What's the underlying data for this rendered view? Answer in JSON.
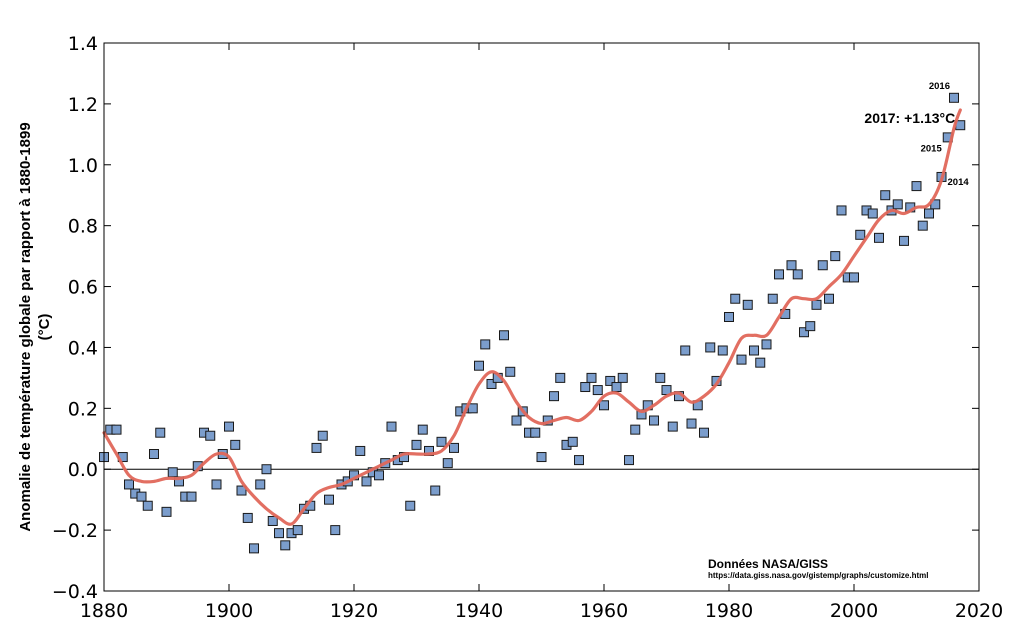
{
  "chart_data": {
    "type": "scatter",
    "title": "",
    "xlabel": "",
    "ylabel_lines": [
      "Anomalie de température globale par rapport à 1880-1899",
      "(°C)"
    ],
    "xlim": [
      1880,
      2020
    ],
    "ylim": [
      -0.4,
      1.4
    ],
    "xticks": [
      1880,
      1900,
      1920,
      1940,
      1960,
      1980,
      2000,
      2020
    ],
    "yticks": [
      -0.4,
      -0.2,
      0.0,
      0.2,
      0.4,
      0.6,
      0.8,
      1.0,
      1.2,
      1.4
    ],
    "grid": false,
    "zero_line": true,
    "marker_color": "#7b9dcc",
    "line_color": "#e0675a",
    "series": [
      {
        "x": [
          1880,
          1881,
          1882,
          1883,
          1884,
          1885,
          1886,
          1887,
          1888,
          1889,
          1890,
          1891,
          1892,
          1893,
          1894,
          1895,
          1896,
          1897,
          1898,
          1899,
          1900,
          1901,
          1902,
          1903,
          1904,
          1905,
          1906,
          1907,
          1908,
          1909,
          1910,
          1911,
          1912,
          1913,
          1914,
          1915,
          1916,
          1917,
          1918,
          1919,
          1920,
          1921,
          1922,
          1923,
          1924,
          1925,
          1926,
          1927,
          1928,
          1929,
          1930,
          1931,
          1932,
          1933,
          1934,
          1935,
          1936,
          1937,
          1938,
          1939,
          1940,
          1941,
          1942,
          1943,
          1944,
          1945,
          1946,
          1947,
          1948,
          1949,
          1950,
          1951,
          1952,
          1953,
          1954,
          1955,
          1956,
          1957,
          1958,
          1959,
          1960,
          1961,
          1962,
          1963,
          1964,
          1965,
          1966,
          1967,
          1968,
          1969,
          1970,
          1971,
          1972,
          1973,
          1974,
          1975,
          1976,
          1977,
          1978,
          1979,
          1980,
          1981,
          1982,
          1983,
          1984,
          1985,
          1986,
          1987,
          1988,
          1989,
          1990,
          1991,
          1992,
          1993,
          1994,
          1995,
          1996,
          1997,
          1998,
          1999,
          2000,
          2001,
          2002,
          2003,
          2004,
          2005,
          2006,
          2007,
          2008,
          2009,
          2010,
          2011,
          2012,
          2013,
          2014,
          2015,
          2016,
          2017
        ],
        "y": [
          0.04,
          0.13,
          0.13,
          0.04,
          -0.05,
          -0.08,
          -0.09,
          -0.12,
          0.05,
          0.12,
          -0.14,
          -0.01,
          -0.04,
          -0.09,
          -0.09,
          0.01,
          0.12,
          0.11,
          -0.05,
          0.05,
          0.14,
          0.08,
          -0.07,
          -0.16,
          -0.26,
          -0.05,
          0.0,
          -0.17,
          -0.21,
          -0.25,
          -0.21,
          -0.2,
          -0.13,
          -0.12,
          0.07,
          0.11,
          -0.1,
          -0.2,
          -0.05,
          -0.04,
          -0.02,
          0.06,
          -0.04,
          -0.01,
          -0.02,
          0.02,
          0.14,
          0.03,
          0.04,
          -0.12,
          0.08,
          0.13,
          0.06,
          -0.07,
          0.09,
          0.02,
          0.07,
          0.19,
          0.2,
          0.2,
          0.34,
          0.41,
          0.28,
          0.3,
          0.44,
          0.32,
          0.16,
          0.19,
          0.12,
          0.12,
          0.04,
          0.16,
          0.24,
          0.3,
          0.08,
          0.09,
          0.03,
          0.27,
          0.3,
          0.26,
          0.21,
          0.29,
          0.27,
          0.3,
          0.03,
          0.13,
          0.18,
          0.21,
          0.16,
          0.3,
          0.26,
          0.14,
          0.24,
          0.39,
          0.15,
          0.21,
          0.12,
          0.4,
          0.29,
          0.39,
          0.5,
          0.56,
          0.36,
          0.54,
          0.39,
          0.35,
          0.41,
          0.56,
          0.64,
          0.51,
          0.67,
          0.64,
          0.45,
          0.47,
          0.54,
          0.67,
          0.56,
          0.7,
          0.85,
          0.63,
          0.63,
          0.77,
          0.85,
          0.84,
          0.76,
          0.9,
          0.85,
          0.87,
          0.75,
          0.86,
          0.93,
          0.8,
          0.84,
          0.87,
          0.96,
          1.09,
          1.22,
          1.13
        ]
      },
      {
        "x": [
          1880,
          1882,
          1884,
          1886,
          1888,
          1890,
          1892,
          1894,
          1896,
          1898,
          1900,
          1902,
          1904,
          1906,
          1908,
          1910,
          1912,
          1914,
          1916,
          1918,
          1920,
          1922,
          1924,
          1926,
          1928,
          1930,
          1932,
          1934,
          1936,
          1938,
          1940,
          1942,
          1944,
          1946,
          1948,
          1950,
          1952,
          1954,
          1956,
          1958,
          1960,
          1962,
          1964,
          1966,
          1968,
          1970,
          1972,
          1974,
          1976,
          1978,
          1980,
          1982,
          1984,
          1986,
          1988,
          1990,
          1992,
          1994,
          1996,
          1998,
          2000,
          2002,
          2004,
          2006,
          2008,
          2010,
          2012,
          2014,
          2016,
          2017
        ],
        "y": [
          0.12,
          0.05,
          -0.02,
          -0.04,
          -0.04,
          -0.03,
          -0.03,
          -0.02,
          0.02,
          0.05,
          0.04,
          -0.04,
          -0.09,
          -0.13,
          -0.16,
          -0.18,
          -0.13,
          -0.08,
          -0.06,
          -0.05,
          -0.03,
          -0.01,
          0.01,
          0.03,
          0.05,
          0.05,
          0.05,
          0.06,
          0.11,
          0.2,
          0.28,
          0.32,
          0.29,
          0.22,
          0.17,
          0.15,
          0.16,
          0.17,
          0.16,
          0.19,
          0.24,
          0.25,
          0.22,
          0.19,
          0.21,
          0.24,
          0.25,
          0.22,
          0.24,
          0.28,
          0.35,
          0.43,
          0.44,
          0.44,
          0.5,
          0.56,
          0.56,
          0.56,
          0.6,
          0.64,
          0.7,
          0.76,
          0.82,
          0.85,
          0.84,
          0.86,
          0.87,
          0.95,
          1.12,
          1.18
        ]
      }
    ],
    "annotations": [
      {
        "text": "2016",
        "x": 2016,
        "y": 1.22,
        "style": "small"
      },
      {
        "text": "2017: +1.13°C",
        "x": 2017,
        "y": 1.13,
        "style": "big"
      },
      {
        "text": "2015",
        "x": 2015,
        "y": 1.09,
        "style": "small"
      },
      {
        "text": "2014",
        "x": 2014,
        "y": 0.96,
        "style": "small"
      }
    ],
    "source": {
      "title": "Données NASA/GISS",
      "url": "https://data.giss.nasa.gov/gistemp/graphs/customize.html"
    }
  }
}
